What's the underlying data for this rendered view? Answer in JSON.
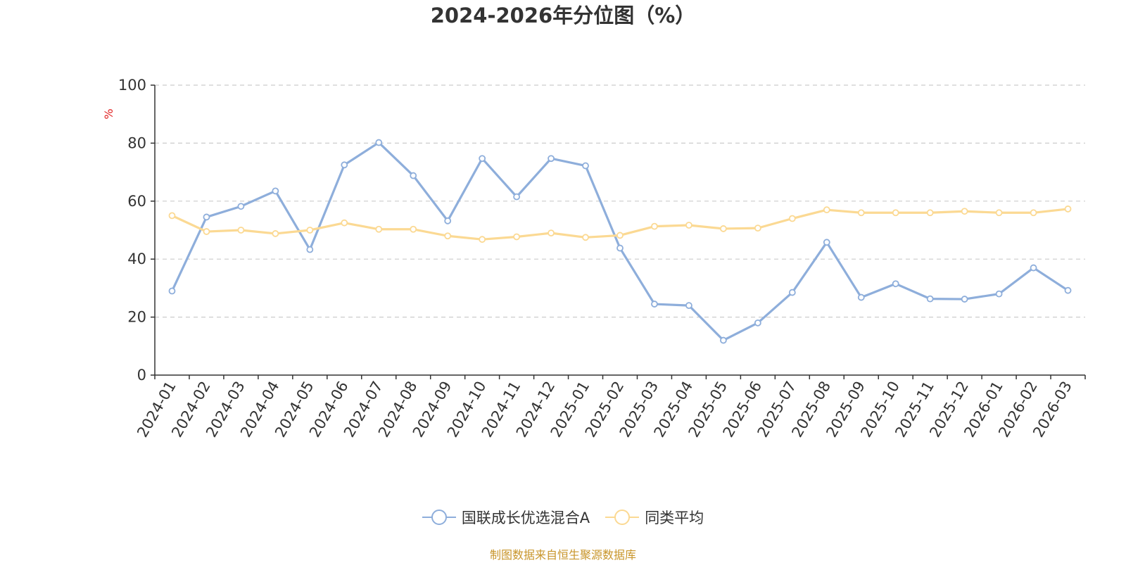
{
  "chart_data": {
    "type": "line",
    "title": "2024-2026年分位图（%）",
    "ylabel": "%",
    "xlabel": "",
    "ylim": [
      0,
      100
    ],
    "yticks": [
      0,
      20,
      40,
      60,
      80,
      100
    ],
    "grid": true,
    "legend_position": "bottom",
    "categories": [
      "2024-01",
      "2024-02",
      "2024-03",
      "2024-04",
      "2024-05",
      "2024-06",
      "2024-07",
      "2024-08",
      "2024-09",
      "2024-10",
      "2024-11",
      "2024-12",
      "2025-01",
      "2025-02",
      "2025-03",
      "2025-04",
      "2025-05",
      "2025-06",
      "2025-07",
      "2025-08",
      "2025-09",
      "2025-10",
      "2025-11",
      "2025-12",
      "2026-01",
      "2026-02",
      "2026-03"
    ],
    "series": [
      {
        "name": "国联成长优选混合A",
        "color": "#8eaedb",
        "values": [
          29,
          54.5,
          58.2,
          63.5,
          43.3,
          72.5,
          80.2,
          68.8,
          53.2,
          74.7,
          61.5,
          74.7,
          72.2,
          43.8,
          24.5,
          24,
          12,
          18,
          28.5,
          45.8,
          26.8,
          31.5,
          26.3,
          26.2,
          28,
          37,
          29.2
        ]
      },
      {
        "name": "同类平均",
        "color": "#fbd993",
        "values": [
          55,
          49.5,
          50,
          48.8,
          50,
          52.5,
          50.3,
          50.3,
          48,
          46.8,
          47.7,
          49,
          47.5,
          48.2,
          51.3,
          51.7,
          50.5,
          50.7,
          54,
          57,
          56,
          56,
          56,
          56.5,
          56,
          56,
          57.3
        ]
      }
    ]
  },
  "footer": {
    "source": "制图数据来自恒生聚源数据库"
  }
}
